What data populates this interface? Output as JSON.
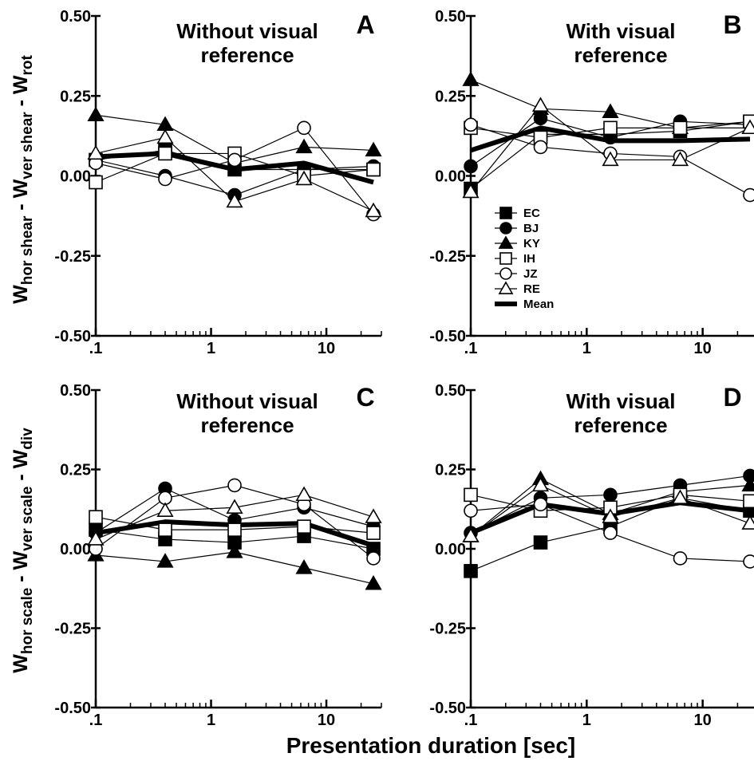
{
  "x_label": "Presentation duration [sec]",
  "y_labels": {
    "top": {
      "parts": [
        {
          "t": "W",
          "sub": false
        },
        {
          "t": "hor shear",
          "sub": true
        },
        {
          "t": " - W",
          "sub": false
        },
        {
          "t": "ver shear",
          "sub": true
        },
        {
          "t": " - W",
          "sub": false
        },
        {
          "t": "rot",
          "sub": true
        }
      ]
    },
    "bottom": {
      "parts": [
        {
          "t": "W",
          "sub": false
        },
        {
          "t": "hor scale",
          "sub": true
        },
        {
          "t": " - W",
          "sub": false
        },
        {
          "t": "ver scale",
          "sub": true
        },
        {
          "t": " - W",
          "sub": false
        },
        {
          "t": "div",
          "sub": true
        }
      ]
    }
  },
  "legend": [
    {
      "name": "EC",
      "marker": "square",
      "filled": true
    },
    {
      "name": "BJ",
      "marker": "circle",
      "filled": true
    },
    {
      "name": "KY",
      "marker": "triangle",
      "filled": true
    },
    {
      "name": "IH",
      "marker": "square",
      "filled": false
    },
    {
      "name": "JZ",
      "marker": "circle",
      "filled": false
    },
    {
      "name": "RE",
      "marker": "triangle",
      "filled": false
    },
    {
      "name": "Mean",
      "marker": "thick-line",
      "filled": true
    }
  ],
  "chart_data": [
    {
      "panel": "A",
      "type": "line",
      "title": "Without visual reference",
      "x_scale": "log",
      "x_ticks": [
        ".1",
        "1",
        "10"
      ],
      "xlim": [
        0.1,
        30
      ],
      "y_ticks": [
        "0.50",
        "0.25",
        "0.00",
        "-0.25",
        "-0.50"
      ],
      "ylim": [
        -0.5,
        0.5
      ],
      "x": [
        0.1,
        0.4,
        1.6,
        6.4,
        25.6
      ],
      "series": [
        {
          "name": "EC",
          "values": [
            0.05,
            0.08,
            0.02,
            0.02,
            0.02
          ]
        },
        {
          "name": "BJ",
          "values": [
            0.05,
            0.0,
            -0.06,
            0.02,
            0.03
          ]
        },
        {
          "name": "KY",
          "values": [
            0.19,
            0.16,
            0.04,
            0.09,
            0.08
          ]
        },
        {
          "name": "IH",
          "values": [
            -0.02,
            0.07,
            0.07,
            0.0,
            0.02
          ]
        },
        {
          "name": "JZ",
          "values": [
            0.04,
            -0.01,
            0.05,
            0.15,
            -0.12
          ]
        },
        {
          "name": "RE",
          "values": [
            0.07,
            0.12,
            -0.08,
            -0.01,
            -0.11
          ]
        },
        {
          "name": "Mean",
          "values": [
            0.06,
            0.07,
            0.02,
            0.04,
            -0.02
          ]
        }
      ]
    },
    {
      "panel": "B",
      "type": "line",
      "title": "With visual reference",
      "x_scale": "log",
      "x_ticks": [
        ".1",
        "1",
        "10"
      ],
      "xlim": [
        0.1,
        30
      ],
      "y_ticks": [
        "0.50",
        "0.25",
        "0.00",
        "-0.25",
        "-0.50"
      ],
      "ylim": [
        -0.5,
        0.5
      ],
      "x": [
        0.1,
        0.4,
        1.6,
        6.4,
        25.6
      ],
      "series": [
        {
          "name": "EC",
          "values": [
            -0.04,
            0.13,
            0.13,
            0.14,
            0.17
          ]
        },
        {
          "name": "BJ",
          "values": [
            0.03,
            0.18,
            0.12,
            0.17,
            0.16
          ]
        },
        {
          "name": "KY",
          "values": [
            0.3,
            0.21,
            0.2,
            0.15,
            0.15
          ]
        },
        {
          "name": "IH",
          "values": [
            0.15,
            0.12,
            0.15,
            0.15,
            0.17
          ]
        },
        {
          "name": "JZ",
          "values": [
            0.16,
            0.09,
            0.07,
            0.06,
            -0.06
          ]
        },
        {
          "name": "RE",
          "values": [
            -0.05,
            0.22,
            0.05,
            0.05,
            0.15
          ]
        },
        {
          "name": "Mean",
          "values": [
            0.08,
            0.15,
            0.11,
            0.11,
            0.115
          ]
        }
      ]
    },
    {
      "panel": "C",
      "type": "line",
      "title": "Without visual reference",
      "x_scale": "log",
      "x_ticks": [
        ".1",
        "1",
        "10"
      ],
      "xlim": [
        0.1,
        30
      ],
      "y_ticks": [
        "0.50",
        "0.25",
        "0.00",
        "-0.25",
        "-0.50"
      ],
      "ylim": [
        -0.5,
        0.5
      ],
      "x": [
        0.1,
        0.4,
        1.6,
        6.4,
        25.6
      ],
      "series": [
        {
          "name": "EC",
          "values": [
            0.06,
            0.03,
            0.02,
            0.04,
            0.0
          ]
        },
        {
          "name": "BJ",
          "values": [
            0.05,
            0.19,
            0.09,
            0.13,
            0.07
          ]
        },
        {
          "name": "KY",
          "values": [
            -0.02,
            -0.04,
            -0.01,
            -0.06,
            -0.11
          ]
        },
        {
          "name": "IH",
          "values": [
            0.1,
            0.06,
            0.06,
            0.07,
            0.05
          ]
        },
        {
          "name": "JZ",
          "values": [
            0.0,
            0.16,
            0.2,
            0.14,
            -0.03
          ]
        },
        {
          "name": "RE",
          "values": [
            0.03,
            0.12,
            0.13,
            0.17,
            0.1
          ]
        },
        {
          "name": "Mean",
          "values": [
            0.05,
            0.085,
            0.075,
            0.08,
            0.01
          ]
        }
      ]
    },
    {
      "panel": "D",
      "type": "line",
      "title": "With visual reference",
      "x_scale": "log",
      "x_ticks": [
        ".1",
        "1",
        "10"
      ],
      "xlim": [
        0.1,
        30
      ],
      "y_ticks": [
        "0.50",
        "0.25",
        "0.00",
        "-0.25",
        "-0.50"
      ],
      "ylim": [
        -0.5,
        0.5
      ],
      "x": [
        0.1,
        0.4,
        1.6,
        6.4,
        25.6
      ],
      "series": [
        {
          "name": "EC",
          "values": [
            -0.07,
            0.02,
            0.07,
            0.16,
            0.12
          ]
        },
        {
          "name": "BJ",
          "values": [
            0.05,
            0.16,
            0.17,
            0.2,
            0.23
          ]
        },
        {
          "name": "KY",
          "values": [
            0.04,
            0.22,
            0.11,
            0.18,
            0.2
          ]
        },
        {
          "name": "IH",
          "values": [
            0.17,
            0.12,
            0.13,
            0.17,
            0.15
          ]
        },
        {
          "name": "JZ",
          "values": [
            0.12,
            0.14,
            0.05,
            -0.03,
            -0.04
          ]
        },
        {
          "name": "RE",
          "values": [
            0.04,
            0.2,
            0.1,
            0.16,
            0.08
          ]
        },
        {
          "name": "Mean",
          "values": [
            0.05,
            0.14,
            0.11,
            0.145,
            0.12
          ]
        }
      ]
    }
  ]
}
